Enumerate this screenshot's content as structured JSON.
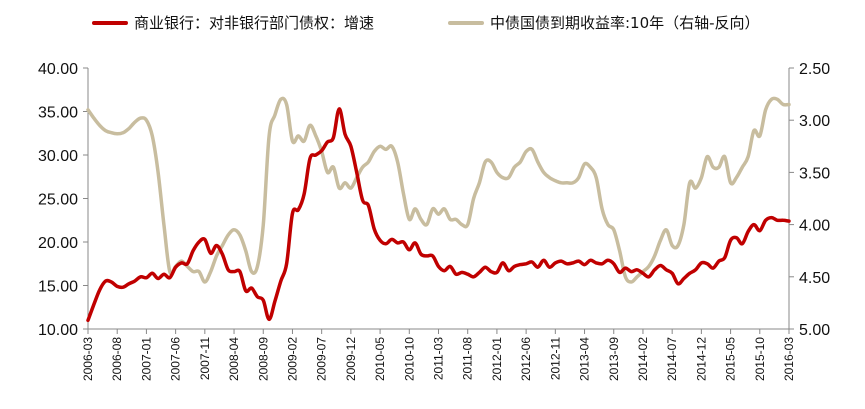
{
  "chart_data": {
    "type": "line",
    "title": "",
    "legend": [
      {
        "name": "商业银行：对非银行部门债权：增速",
        "color": "#C00000",
        "axis": "left"
      },
      {
        "name": "中债国债到期收益率:10年（右轴-反向）",
        "color": "#C8BD9F",
        "axis": "right"
      }
    ],
    "left_axis": {
      "ylim": [
        10,
        40
      ],
      "ticks": [
        "10.00",
        "15.00",
        "20.00",
        "25.00",
        "30.00",
        "35.00",
        "40.00"
      ]
    },
    "right_axis": {
      "ylim": [
        2.5,
        5.0
      ],
      "inverted": true,
      "ticks": [
        "2.50",
        "3.00",
        "3.50",
        "4.00",
        "4.50",
        "5.00"
      ]
    },
    "x_tick_labels": [
      "2006-03",
      "2006-08",
      "2007-01",
      "2007-06",
      "2007-11",
      "2008-04",
      "2008-09",
      "2009-02",
      "2009-07",
      "2009-12",
      "2010-05",
      "2010-10",
      "2011-03",
      "2011-08",
      "2012-01",
      "2012-06",
      "2012-11",
      "2013-04",
      "2013-09",
      "2014-02",
      "2014-07",
      "2014-12",
      "2015-05",
      "2015-10",
      "2016-03"
    ],
    "x_start": "2006-03",
    "x_end": "2016-03",
    "series": [
      {
        "name": "商业银行：对非银行部门债权：增速",
        "axis": "left",
        "values": [
          [
            "2006-03",
            11.0
          ],
          [
            "2006-04",
            12.8
          ],
          [
            "2006-05",
            14.5
          ],
          [
            "2006-06",
            15.5
          ],
          [
            "2006-07",
            15.4
          ],
          [
            "2006-08",
            14.9
          ],
          [
            "2006-09",
            14.8
          ],
          [
            "2006-10",
            15.2
          ],
          [
            "2006-11",
            15.5
          ],
          [
            "2006-12",
            16.0
          ],
          [
            "2007-01",
            15.9
          ],
          [
            "2007-02",
            16.4
          ],
          [
            "2007-03",
            15.8
          ],
          [
            "2007-04",
            16.3
          ],
          [
            "2007-05",
            15.9
          ],
          [
            "2007-06",
            17.1
          ],
          [
            "2007-07",
            17.6
          ],
          [
            "2007-08",
            17.5
          ],
          [
            "2007-09",
            19.0
          ],
          [
            "2007-10",
            20.0
          ],
          [
            "2007-11",
            20.3
          ],
          [
            "2007-12",
            18.7
          ],
          [
            "2008-01",
            19.6
          ],
          [
            "2008-02",
            18.6
          ],
          [
            "2008-03",
            16.8
          ],
          [
            "2008-04",
            16.6
          ],
          [
            "2008-05",
            16.6
          ],
          [
            "2008-06",
            14.4
          ],
          [
            "2008-07",
            14.7
          ],
          [
            "2008-08",
            13.7
          ],
          [
            "2008-09",
            13.3
          ],
          [
            "2008-10",
            11.1
          ],
          [
            "2008-11",
            13.2
          ],
          [
            "2008-12",
            15.5
          ],
          [
            "2009-01",
            17.5
          ],
          [
            "2009-02",
            23.3
          ],
          [
            "2009-03",
            23.7
          ],
          [
            "2009-04",
            25.5
          ],
          [
            "2009-05",
            29.6
          ],
          [
            "2009-06",
            30.0
          ],
          [
            "2009-07",
            30.5
          ],
          [
            "2009-08",
            31.5
          ],
          [
            "2009-09",
            32.0
          ],
          [
            "2009-10",
            35.3
          ],
          [
            "2009-11",
            32.4
          ],
          [
            "2009-12",
            31.0
          ],
          [
            "2010-01",
            28.0
          ],
          [
            "2010-02",
            24.8
          ],
          [
            "2010-03",
            24.2
          ],
          [
            "2010-04",
            21.5
          ],
          [
            "2010-05",
            20.2
          ],
          [
            "2010-06",
            19.8
          ],
          [
            "2010-07",
            20.3
          ],
          [
            "2010-08",
            19.9
          ],
          [
            "2010-09",
            20.0
          ],
          [
            "2010-10",
            19.1
          ],
          [
            "2010-11",
            19.9
          ],
          [
            "2010-12",
            18.6
          ],
          [
            "2011-01",
            18.4
          ],
          [
            "2011-02",
            18.4
          ],
          [
            "2011-03",
            17.2
          ],
          [
            "2011-04",
            16.7
          ],
          [
            "2011-05",
            17.2
          ],
          [
            "2011-06",
            16.3
          ],
          [
            "2011-07",
            16.5
          ],
          [
            "2011-08",
            16.3
          ],
          [
            "2011-09",
            16.0
          ],
          [
            "2011-10",
            16.5
          ],
          [
            "2011-11",
            17.1
          ],
          [
            "2011-12",
            16.6
          ],
          [
            "2012-01",
            16.5
          ],
          [
            "2012-02",
            17.6
          ],
          [
            "2012-03",
            16.7
          ],
          [
            "2012-04",
            17.2
          ],
          [
            "2012-05",
            17.4
          ],
          [
            "2012-06",
            17.5
          ],
          [
            "2012-07",
            17.7
          ],
          [
            "2012-08",
            17.1
          ],
          [
            "2012-09",
            17.9
          ],
          [
            "2012-10",
            17.1
          ],
          [
            "2012-11",
            17.6
          ],
          [
            "2012-12",
            17.8
          ],
          [
            "2013-01",
            17.5
          ],
          [
            "2013-02",
            17.6
          ],
          [
            "2013-03",
            17.8
          ],
          [
            "2013-04",
            17.4
          ],
          [
            "2013-05",
            17.9
          ],
          [
            "2013-06",
            17.6
          ],
          [
            "2013-07",
            17.5
          ],
          [
            "2013-08",
            17.9
          ],
          [
            "2013-09",
            17.5
          ],
          [
            "2013-10",
            16.5
          ],
          [
            "2013-11",
            17.0
          ],
          [
            "2013-12",
            16.6
          ],
          [
            "2014-01",
            16.8
          ],
          [
            "2014-02",
            16.4
          ],
          [
            "2014-03",
            16.0
          ],
          [
            "2014-04",
            16.8
          ],
          [
            "2014-05",
            17.3
          ],
          [
            "2014-06",
            16.8
          ],
          [
            "2014-07",
            16.4
          ],
          [
            "2014-08",
            15.2
          ],
          [
            "2014-09",
            15.8
          ],
          [
            "2014-10",
            16.4
          ],
          [
            "2014-11",
            16.8
          ],
          [
            "2014-12",
            17.6
          ],
          [
            "2015-01",
            17.5
          ],
          [
            "2015-02",
            17.0
          ],
          [
            "2015-03",
            17.8
          ],
          [
            "2015-04",
            18.2
          ],
          [
            "2015-05",
            20.2
          ],
          [
            "2015-06",
            20.5
          ],
          [
            "2015-07",
            19.8
          ],
          [
            "2015-08",
            21.2
          ],
          [
            "2015-09",
            22.0
          ],
          [
            "2015-10",
            21.3
          ],
          [
            "2015-11",
            22.5
          ],
          [
            "2015-12",
            22.8
          ],
          [
            "2016-01",
            22.5
          ],
          [
            "2016-02",
            22.5
          ],
          [
            "2016-03",
            22.4
          ]
        ]
      },
      {
        "name": "中债国债到期收益率:10年（右轴-反向）",
        "axis": "right",
        "values": [
          [
            "2006-03",
            2.9
          ],
          [
            "2006-04",
            2.98
          ],
          [
            "2006-05",
            3.05
          ],
          [
            "2006-06",
            3.1
          ],
          [
            "2006-07",
            3.12
          ],
          [
            "2006-08",
            3.13
          ],
          [
            "2006-09",
            3.12
          ],
          [
            "2006-10",
            3.08
          ],
          [
            "2006-11",
            3.02
          ],
          [
            "2006-12",
            2.98
          ],
          [
            "2007-01",
            3.0
          ],
          [
            "2007-02",
            3.15
          ],
          [
            "2007-03",
            3.5
          ],
          [
            "2007-04",
            4.0
          ],
          [
            "2007-05",
            4.45
          ],
          [
            "2007-06",
            4.4
          ],
          [
            "2007-07",
            4.35
          ],
          [
            "2007-08",
            4.4
          ],
          [
            "2007-09",
            4.45
          ],
          [
            "2007-10",
            4.45
          ],
          [
            "2007-11",
            4.55
          ],
          [
            "2007-12",
            4.45
          ],
          [
            "2008-01",
            4.3
          ],
          [
            "2008-02",
            4.2
          ],
          [
            "2008-03",
            4.1
          ],
          [
            "2008-04",
            4.05
          ],
          [
            "2008-05",
            4.1
          ],
          [
            "2008-06",
            4.25
          ],
          [
            "2008-07",
            4.45
          ],
          [
            "2008-08",
            4.4
          ],
          [
            "2008-09",
            4.0
          ],
          [
            "2008-10",
            3.15
          ],
          [
            "2008-11",
            2.95
          ],
          [
            "2008-12",
            2.8
          ],
          [
            "2009-01",
            2.85
          ],
          [
            "2009-02",
            3.2
          ],
          [
            "2009-03",
            3.15
          ],
          [
            "2009-04",
            3.2
          ],
          [
            "2009-05",
            3.05
          ],
          [
            "2009-06",
            3.15
          ],
          [
            "2009-07",
            3.3
          ],
          [
            "2009-08",
            3.5
          ],
          [
            "2009-09",
            3.45
          ],
          [
            "2009-10",
            3.65
          ],
          [
            "2009-11",
            3.6
          ],
          [
            "2009-12",
            3.65
          ],
          [
            "2010-01",
            3.55
          ],
          [
            "2010-02",
            3.45
          ],
          [
            "2010-03",
            3.4
          ],
          [
            "2010-04",
            3.3
          ],
          [
            "2010-05",
            3.25
          ],
          [
            "2010-06",
            3.28
          ],
          [
            "2010-07",
            3.25
          ],
          [
            "2010-08",
            3.4
          ],
          [
            "2010-09",
            3.7
          ],
          [
            "2010-10",
            3.95
          ],
          [
            "2010-11",
            3.85
          ],
          [
            "2010-12",
            3.95
          ],
          [
            "2011-01",
            4.0
          ],
          [
            "2011-02",
            3.85
          ],
          [
            "2011-03",
            3.9
          ],
          [
            "2011-04",
            3.85
          ],
          [
            "2011-05",
            3.95
          ],
          [
            "2011-06",
            3.95
          ],
          [
            "2011-07",
            4.0
          ],
          [
            "2011-08",
            4.0
          ],
          [
            "2011-09",
            3.75
          ],
          [
            "2011-10",
            3.6
          ],
          [
            "2011-11",
            3.4
          ],
          [
            "2011-12",
            3.4
          ],
          [
            "2012-01",
            3.5
          ],
          [
            "2012-02",
            3.55
          ],
          [
            "2012-03",
            3.55
          ],
          [
            "2012-04",
            3.45
          ],
          [
            "2012-05",
            3.4
          ],
          [
            "2012-06",
            3.3
          ],
          [
            "2012-07",
            3.28
          ],
          [
            "2012-08",
            3.4
          ],
          [
            "2012-09",
            3.5
          ],
          [
            "2012-10",
            3.55
          ],
          [
            "2012-11",
            3.58
          ],
          [
            "2012-12",
            3.6
          ],
          [
            "2013-01",
            3.6
          ],
          [
            "2013-02",
            3.6
          ],
          [
            "2013-03",
            3.55
          ],
          [
            "2013-04",
            3.42
          ],
          [
            "2013-05",
            3.45
          ],
          [
            "2013-06",
            3.55
          ],
          [
            "2013-07",
            3.85
          ],
          [
            "2013-08",
            4.0
          ],
          [
            "2013-09",
            4.05
          ],
          [
            "2013-10",
            4.25
          ],
          [
            "2013-11",
            4.5
          ],
          [
            "2013-12",
            4.55
          ],
          [
            "2014-01",
            4.5
          ],
          [
            "2014-02",
            4.45
          ],
          [
            "2014-03",
            4.4
          ],
          [
            "2014-04",
            4.3
          ],
          [
            "2014-05",
            4.15
          ],
          [
            "2014-06",
            4.05
          ],
          [
            "2014-07",
            4.2
          ],
          [
            "2014-08",
            4.2
          ],
          [
            "2014-09",
            4.0
          ],
          [
            "2014-10",
            3.6
          ],
          [
            "2014-11",
            3.65
          ],
          [
            "2014-12",
            3.55
          ],
          [
            "2015-01",
            3.35
          ],
          [
            "2015-02",
            3.45
          ],
          [
            "2015-03",
            3.45
          ],
          [
            "2015-04",
            3.35
          ],
          [
            "2015-05",
            3.6
          ],
          [
            "2015-06",
            3.55
          ],
          [
            "2015-07",
            3.45
          ],
          [
            "2015-08",
            3.35
          ],
          [
            "2015-09",
            3.1
          ],
          [
            "2015-10",
            3.15
          ],
          [
            "2015-11",
            2.9
          ],
          [
            "2015-12",
            2.8
          ],
          [
            "2016-01",
            2.8
          ],
          [
            "2016-02",
            2.85
          ],
          [
            "2016-03",
            2.85
          ]
        ]
      }
    ],
    "grid": false,
    "legend_position": "top"
  }
}
